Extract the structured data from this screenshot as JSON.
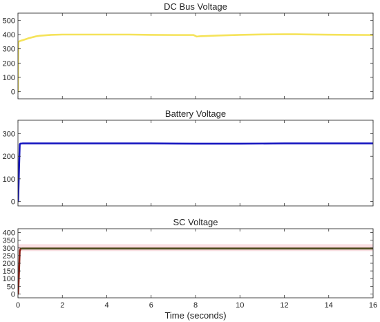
{
  "chart_data": [
    {
      "type": "line",
      "title": "DC Bus Voltage",
      "xlabel": "",
      "ylabel": "",
      "xlim": [
        0,
        16
      ],
      "ylim": [
        -50,
        550
      ],
      "yticks": [
        0,
        100,
        200,
        300,
        400,
        500
      ],
      "xticks": [
        0,
        2,
        4,
        6,
        8,
        10,
        12,
        14,
        16
      ],
      "show_xtick_labels": false,
      "grid": false,
      "series": [
        {
          "color": "#f5e35a",
          "x": [
            0,
            0.005,
            0.02,
            0.05,
            0.1,
            0.2,
            0.3,
            0.5,
            0.8,
            1.0,
            1.5,
            2.0,
            3.0,
            4.0,
            5.0,
            6.0,
            7.0,
            7.9,
            8.0,
            8.05,
            8.2,
            9.0,
            10.0,
            11.0,
            12.0,
            12.5,
            13.0,
            14.0,
            15.0,
            16.0
          ],
          "values": [
            0,
            200,
            345,
            352,
            355,
            360,
            365,
            375,
            387,
            392,
            398,
            400,
            400,
            400,
            400,
            398,
            397,
            397,
            390,
            386,
            388,
            393,
            398,
            401,
            402,
            402,
            401,
            399,
            398,
            397
          ]
        }
      ]
    },
    {
      "type": "line",
      "title": "Battery Voltage",
      "xlabel": "",
      "ylabel": "",
      "xlim": [
        0,
        16
      ],
      "ylim": [
        -20,
        360
      ],
      "yticks": [
        0,
        100,
        200,
        300
      ],
      "xticks": [
        0,
        2,
        4,
        6,
        8,
        10,
        12,
        14,
        16
      ],
      "show_xtick_labels": false,
      "grid": false,
      "series": [
        {
          "color": "#1515c0",
          "x": [
            0,
            0.01,
            0.05,
            0.08,
            0.1,
            0.2,
            2,
            4,
            6,
            8,
            10,
            12,
            14,
            16
          ],
          "values": [
            0,
            5,
            150,
            252,
            256,
            257,
            257,
            257,
            257,
            256,
            256,
            257,
            257,
            257
          ]
        }
      ]
    },
    {
      "type": "line",
      "title": "SC Voltage",
      "xlabel": "Time (seconds)",
      "ylabel": "",
      "xlim": [
        0,
        16
      ],
      "ylim": [
        -25,
        425
      ],
      "yticks": [
        0,
        50,
        100,
        150,
        200,
        250,
        300,
        350,
        400
      ],
      "xticks": [
        0,
        2,
        4,
        6,
        8,
        10,
        12,
        14,
        16
      ],
      "show_xtick_labels": true,
      "grid": false,
      "series": [
        {
          "color": "#f4b8c0",
          "x": [
            0,
            16
          ],
          "values": [
            302,
            302
          ]
        },
        {
          "color": "#8b1a10",
          "x": [
            0,
            0.01,
            0.05,
            0.08,
            0.12,
            0.2,
            2,
            4,
            6,
            8,
            10,
            12,
            14,
            16
          ],
          "values": [
            0,
            5,
            150,
            280,
            295,
            296,
            296,
            296,
            296,
            296,
            296,
            296,
            296,
            296
          ]
        },
        {
          "color": "#4a4a1a",
          "x": [
            0.15,
            16
          ],
          "values": [
            296,
            296
          ]
        }
      ]
    }
  ]
}
